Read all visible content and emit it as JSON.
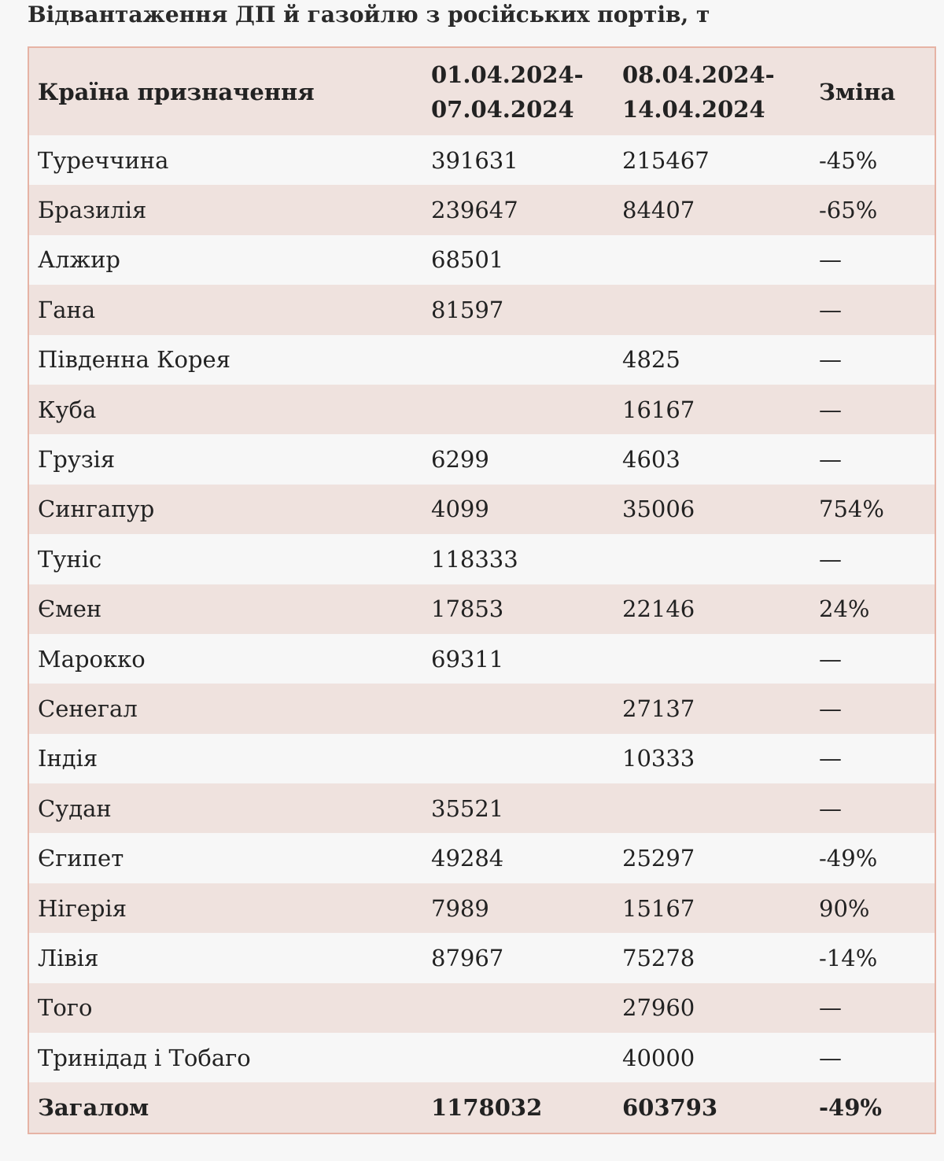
{
  "title": "Відвантаження ДП й газойлю з російських портів, т",
  "table": {
    "headers": {
      "country": "Країна призначення",
      "period1_line1": "01.04.2024-",
      "period1_line2": "07.04.2024",
      "period2_line1": "08.04.2024-",
      "period2_line2": "14.04.2024",
      "change": "Зміна"
    },
    "rows": [
      {
        "country": "Туреччина",
        "p1": "391631",
        "p2": "215467",
        "change": "-45%"
      },
      {
        "country": "Бразилія",
        "p1": "239647",
        "p2": "84407",
        "change": "-65%"
      },
      {
        "country": "Алжир",
        "p1": "68501",
        "p2": "",
        "change": "—"
      },
      {
        "country": "Гана",
        "p1": "81597",
        "p2": "",
        "change": "—"
      },
      {
        "country": "Південна Корея",
        "p1": "",
        "p2": "4825",
        "change": "—"
      },
      {
        "country": "Куба",
        "p1": "",
        "p2": "16167",
        "change": "—"
      },
      {
        "country": "Грузія",
        "p1": "6299",
        "p2": "4603",
        "change": "—"
      },
      {
        "country": "Сингапур",
        "p1": "4099",
        "p2": "35006",
        "change": "754%"
      },
      {
        "country": "Туніс",
        "p1": "118333",
        "p2": "",
        "change": "—"
      },
      {
        "country": "Ємен",
        "p1": "17853",
        "p2": "22146",
        "change": "24%"
      },
      {
        "country": "Марокко",
        "p1": "69311",
        "p2": "",
        "change": "—"
      },
      {
        "country": "Сенегал",
        "p1": "",
        "p2": "27137",
        "change": "—"
      },
      {
        "country": "Індія",
        "p1": "",
        "p2": "10333",
        "change": "—"
      },
      {
        "country": "Судан",
        "p1": "35521",
        "p2": "",
        "change": "—"
      },
      {
        "country": "Єгипет",
        "p1": "49284",
        "p2": "25297",
        "change": "-49%"
      },
      {
        "country": "Нігерія",
        "p1": "7989",
        "p2": "15167",
        "change": "90%"
      },
      {
        "country": "Лівія",
        "p1": "87967",
        "p2": "75278",
        "change": "-14%"
      },
      {
        "country": "Того",
        "p1": "",
        "p2": "27960",
        "change": "—"
      },
      {
        "country": "Тринідад і Тобаго",
        "p1": "",
        "p2": "40000",
        "change": "—"
      }
    ],
    "total": {
      "country": "Загалом",
      "p1": "1178032",
      "p2": "603793",
      "change": "-49%"
    }
  }
}
